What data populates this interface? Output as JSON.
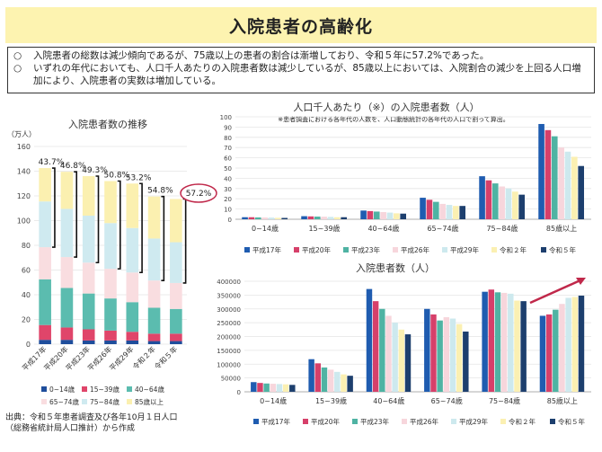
{
  "title": "入院患者の高齢化",
  "notes": [
    {
      "bullet": "○",
      "text": "入院患者の総数は減少傾向であるが、75歳以上の患者の割合は漸増しており、令和５年に57.2%であった。"
    },
    {
      "bullet": "○",
      "text": "いずれの年代においても、人口千人あたりの入院患者数は減少しているが、85歳以上においては、入院割合の減少を上回る人口増加により、入院患者の実数は増加している。"
    }
  ],
  "source": [
    "出典：令和５年患者調査及び各年10月１日人口",
    "（総務省統計局人口推計）から作成"
  ],
  "colors": {
    "age": [
      "#1f4e9c",
      "#e0456a",
      "#5bbcaf",
      "#f9dde0",
      "#cfeaf0",
      "#fbf0b0"
    ],
    "year": [
      "#1f5cb0",
      "#d6406a",
      "#4fb3a3",
      "#f7d6dc",
      "#cde9ee",
      "#fbf0b2",
      "#1d3f6e"
    ],
    "highlight": "#c0284a"
  },
  "chart_data": [
    {
      "type": "bar",
      "stacked": true,
      "title": "入院患者数の推移",
      "ylabel": "（万人）",
      "ylim": [
        0,
        160
      ],
      "yticks": [
        "0",
        "20",
        "40",
        "60",
        "80",
        "100",
        "120",
        "140",
        "160"
      ],
      "categories": [
        "平成17年",
        "平成20年",
        "平成23年",
        "平成26年",
        "平成29年",
        "令和２年",
        "令和５年"
      ],
      "series": [
        {
          "name": "0~14歳",
          "values": [
            3.5,
            3.5,
            3,
            3,
            3,
            2.5,
            2.5
          ]
        },
        {
          "name": "15~39歳",
          "values": [
            12,
            10,
            9,
            8,
            7,
            6,
            6
          ]
        },
        {
          "name": "40~64歳",
          "values": [
            37,
            32,
            29,
            26,
            24,
            21,
            20
          ]
        },
        {
          "name": "65~74歳",
          "values": [
            26,
            25,
            25,
            24,
            24,
            22,
            21
          ]
        },
        {
          "name": "75~84歳",
          "values": [
            37,
            39,
            38,
            37,
            36,
            34,
            33
          ]
        },
        {
          "name": "85歳以上",
          "values": [
            27,
            30,
            32,
            34,
            36,
            34,
            35
          ]
        }
      ],
      "labels": [
        "43.7%",
        "46.8%",
        "49.3%",
        "50.8%",
        "53.2%",
        "54.8%",
        "57.2%"
      ]
    },
    {
      "type": "bar",
      "title": "人口千人あたり（※）の入院患者数（人）",
      "annotation": "※患者調査における各年代の人数を、人口動態統計の各年代の人口で割って算出。",
      "ylim": [
        0,
        100
      ],
      "yticks": [
        "0",
        "10",
        "20",
        "30",
        "40",
        "50",
        "60",
        "70",
        "80",
        "90",
        "100"
      ],
      "categories": [
        "0~14歳",
        "15~39歳",
        "40~64歳",
        "65~74歳",
        "75~84歳",
        "85歳以上"
      ],
      "series": [
        {
          "name": "平成17年",
          "values": [
            2.0,
            3.0,
            8.5,
            21,
            42,
            93
          ]
        },
        {
          "name": "平成20年",
          "values": [
            2.0,
            2.8,
            8.0,
            19,
            38,
            87
          ]
        },
        {
          "name": "平成23年",
          "values": [
            1.8,
            2.6,
            7.5,
            17,
            35,
            81
          ]
        },
        {
          "name": "平成26年",
          "values": [
            1.7,
            2.5,
            7.0,
            15,
            32,
            70
          ]
        },
        {
          "name": "平成29年",
          "values": [
            1.6,
            2.3,
            6.5,
            14,
            30,
            66
          ]
        },
        {
          "name": "令和２年",
          "values": [
            1.4,
            2.0,
            5.8,
            13,
            27,
            61
          ]
        },
        {
          "name": "令和５年",
          "values": [
            1.3,
            2.0,
            5.5,
            13,
            24,
            52
          ]
        }
      ]
    },
    {
      "type": "bar",
      "title": "入院患者数（人）",
      "ylim": [
        0,
        400000
      ],
      "yticks": [
        "0",
        "50000",
        "100000",
        "150000",
        "200000",
        "250000",
        "300000",
        "350000",
        "400000"
      ],
      "categories": [
        "0~14歳",
        "15~39歳",
        "40~64歳",
        "65~74歳",
        "75~84歳",
        "85歳以上"
      ],
      "series": [
        {
          "name": "平成17年",
          "values": [
            35000,
            118000,
            372000,
            300000,
            362000,
            275000
          ]
        },
        {
          "name": "平成20年",
          "values": [
            32000,
            103000,
            328000,
            280000,
            370000,
            280000
          ]
        },
        {
          "name": "平成23年",
          "values": [
            30000,
            88000,
            300000,
            258000,
            360000,
            297000
          ]
        },
        {
          "name": "平成26年",
          "values": [
            29000,
            80000,
            275000,
            270000,
            358000,
            318000
          ]
        },
        {
          "name": "平成29年",
          "values": [
            28000,
            72000,
            250000,
            265000,
            355000,
            340000
          ]
        },
        {
          "name": "令和２年",
          "values": [
            27000,
            63000,
            225000,
            245000,
            330000,
            343000
          ]
        },
        {
          "name": "令和５年",
          "values": [
            25000,
            58000,
            208000,
            218000,
            328000,
            348000
          ]
        }
      ]
    }
  ]
}
